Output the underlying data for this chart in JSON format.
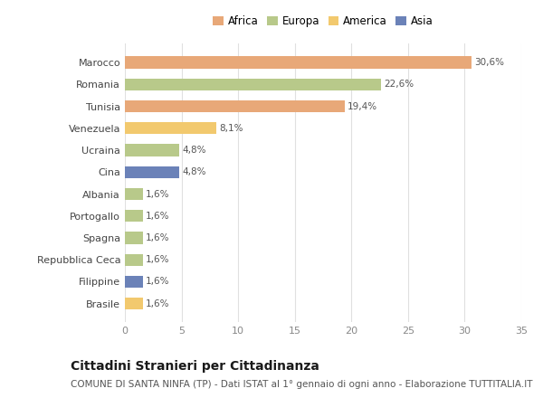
{
  "categories": [
    "Brasile",
    "Filippine",
    "Repubblica Ceca",
    "Spagna",
    "Portogallo",
    "Albania",
    "Cina",
    "Ucraina",
    "Venezuela",
    "Tunisia",
    "Romania",
    "Marocco"
  ],
  "values": [
    1.6,
    1.6,
    1.6,
    1.6,
    1.6,
    1.6,
    4.8,
    4.8,
    8.1,
    19.4,
    22.6,
    30.6
  ],
  "labels": [
    "1,6%",
    "1,6%",
    "1,6%",
    "1,6%",
    "1,6%",
    "1,6%",
    "4,8%",
    "4,8%",
    "8,1%",
    "19,4%",
    "22,6%",
    "30,6%"
  ],
  "colors": [
    "#f2c96e",
    "#6b82b8",
    "#b8c98a",
    "#b8c98a",
    "#b8c98a",
    "#b8c98a",
    "#6b82b8",
    "#b8c98a",
    "#f2c96e",
    "#e8a878",
    "#b8c98a",
    "#e8a878"
  ],
  "legend": {
    "Africa": "#e8a878",
    "Europa": "#b8c98a",
    "America": "#f2c96e",
    "Asia": "#6b82b8"
  },
  "legend_order": [
    "Africa",
    "Europa",
    "America",
    "Asia"
  ],
  "title": "Cittadini Stranieri per Cittadinanza",
  "subtitle": "COMUNE DI SANTA NINFA (TP) - Dati ISTAT al 1° gennaio di ogni anno - Elaborazione TUTTITALIA.IT",
  "xlim": [
    0,
    35
  ],
  "xticks": [
    0,
    5,
    10,
    15,
    20,
    25,
    30,
    35
  ],
  "background_color": "#ffffff",
  "grid_color": "#e0e0e0",
  "bar_height": 0.55,
  "title_fontsize": 10,
  "subtitle_fontsize": 7.5,
  "label_fontsize": 7.5,
  "tick_fontsize": 8,
  "legend_fontsize": 8.5
}
